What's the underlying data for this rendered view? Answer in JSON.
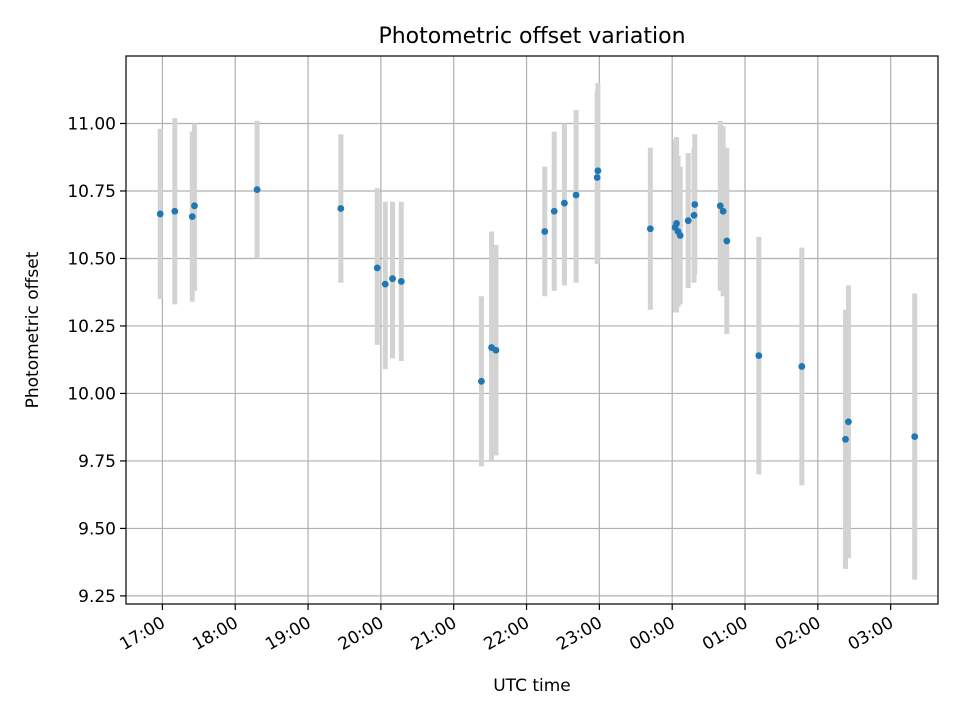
{
  "chart_data": {
    "type": "scatter",
    "title": "Photometric offset variation",
    "xlabel": "UTC time",
    "ylabel": "Photometric offset",
    "xlim": [
      -0.5,
      10.65
    ],
    "ylim": [
      9.22,
      11.25
    ],
    "grid": true,
    "x_ticks": [
      {
        "value": 0,
        "label": "17:00"
      },
      {
        "value": 1,
        "label": "18:00"
      },
      {
        "value": 2,
        "label": "19:00"
      },
      {
        "value": 3,
        "label": "20:00"
      },
      {
        "value": 4,
        "label": "21:00"
      },
      {
        "value": 5,
        "label": "22:00"
      },
      {
        "value": 6,
        "label": "23:00"
      },
      {
        "value": 7,
        "label": "00:00"
      },
      {
        "value": 8,
        "label": "01:00"
      },
      {
        "value": 9,
        "label": "02:00"
      },
      {
        "value": 10,
        "label": "03:00"
      }
    ],
    "y_ticks": [
      {
        "value": 9.25,
        "label": "9.25"
      },
      {
        "value": 9.5,
        "label": "9.50"
      },
      {
        "value": 9.75,
        "label": "9.75"
      },
      {
        "value": 10.0,
        "label": "10.00"
      },
      {
        "value": 10.25,
        "label": "10.25"
      },
      {
        "value": 10.5,
        "label": "10.50"
      },
      {
        "value": 10.75,
        "label": "10.75"
      },
      {
        "value": 11.0,
        "label": "11.00"
      }
    ],
    "x_unit": "hours after 17:00 UTC",
    "points": [
      {
        "x": -0.03,
        "y": 10.665,
        "lo": 10.35,
        "hi": 10.98
      },
      {
        "x": 0.17,
        "y": 10.675,
        "lo": 10.33,
        "hi": 11.02
      },
      {
        "x": 0.41,
        "y": 10.655,
        "lo": 10.34,
        "hi": 10.97
      },
      {
        "x": 0.44,
        "y": 10.695,
        "lo": 10.38,
        "hi": 11.0
      },
      {
        "x": 1.3,
        "y": 10.755,
        "lo": 10.5,
        "hi": 11.01
      },
      {
        "x": 2.45,
        "y": 10.685,
        "lo": 10.41,
        "hi": 10.96
      },
      {
        "x": 2.95,
        "y": 10.465,
        "lo": 10.18,
        "hi": 10.76
      },
      {
        "x": 3.06,
        "y": 10.405,
        "lo": 10.09,
        "hi": 10.71
      },
      {
        "x": 3.16,
        "y": 10.425,
        "lo": 10.13,
        "hi": 10.71
      },
      {
        "x": 3.28,
        "y": 10.415,
        "lo": 10.12,
        "hi": 10.71
      },
      {
        "x": 4.38,
        "y": 10.045,
        "lo": 9.73,
        "hi": 10.36
      },
      {
        "x": 4.52,
        "y": 10.17,
        "lo": 9.75,
        "hi": 10.6
      },
      {
        "x": 4.58,
        "y": 10.16,
        "lo": 9.77,
        "hi": 10.55
      },
      {
        "x": 5.25,
        "y": 10.6,
        "lo": 10.36,
        "hi": 10.84
      },
      {
        "x": 5.38,
        "y": 10.675,
        "lo": 10.38,
        "hi": 10.97
      },
      {
        "x": 5.52,
        "y": 10.705,
        "lo": 10.4,
        "hi": 11.0
      },
      {
        "x": 5.68,
        "y": 10.735,
        "lo": 10.41,
        "hi": 11.05
      },
      {
        "x": 5.97,
        "y": 10.8,
        "lo": 10.48,
        "hi": 11.12
      },
      {
        "x": 5.98,
        "y": 10.825,
        "lo": 10.5,
        "hi": 11.15
      },
      {
        "x": 6.7,
        "y": 10.61,
        "lo": 10.31,
        "hi": 10.91
      },
      {
        "x": 7.04,
        "y": 10.615,
        "lo": 10.3,
        "hi": 10.94
      },
      {
        "x": 7.06,
        "y": 10.63,
        "lo": 10.3,
        "hi": 10.95
      },
      {
        "x": 7.08,
        "y": 10.6,
        "lo": 10.32,
        "hi": 10.88
      },
      {
        "x": 7.11,
        "y": 10.585,
        "lo": 10.33,
        "hi": 10.84
      },
      {
        "x": 7.22,
        "y": 10.64,
        "lo": 10.39,
        "hi": 10.89
      },
      {
        "x": 7.3,
        "y": 10.66,
        "lo": 10.41,
        "hi": 10.91
      },
      {
        "x": 7.31,
        "y": 10.7,
        "lo": 10.44,
        "hi": 10.96
      },
      {
        "x": 7.66,
        "y": 10.695,
        "lo": 10.38,
        "hi": 11.01
      },
      {
        "x": 7.7,
        "y": 10.675,
        "lo": 10.36,
        "hi": 10.99
      },
      {
        "x": 7.75,
        "y": 10.565,
        "lo": 10.22,
        "hi": 10.91
      },
      {
        "x": 8.19,
        "y": 10.14,
        "lo": 9.7,
        "hi": 10.58
      },
      {
        "x": 8.78,
        "y": 10.1,
        "lo": 9.66,
        "hi": 10.54
      },
      {
        "x": 9.38,
        "y": 9.83,
        "lo": 9.35,
        "hi": 10.31
      },
      {
        "x": 9.42,
        "y": 9.895,
        "lo": 9.39,
        "hi": 10.4
      },
      {
        "x": 10.33,
        "y": 9.84,
        "lo": 9.31,
        "hi": 10.37
      }
    ]
  }
}
